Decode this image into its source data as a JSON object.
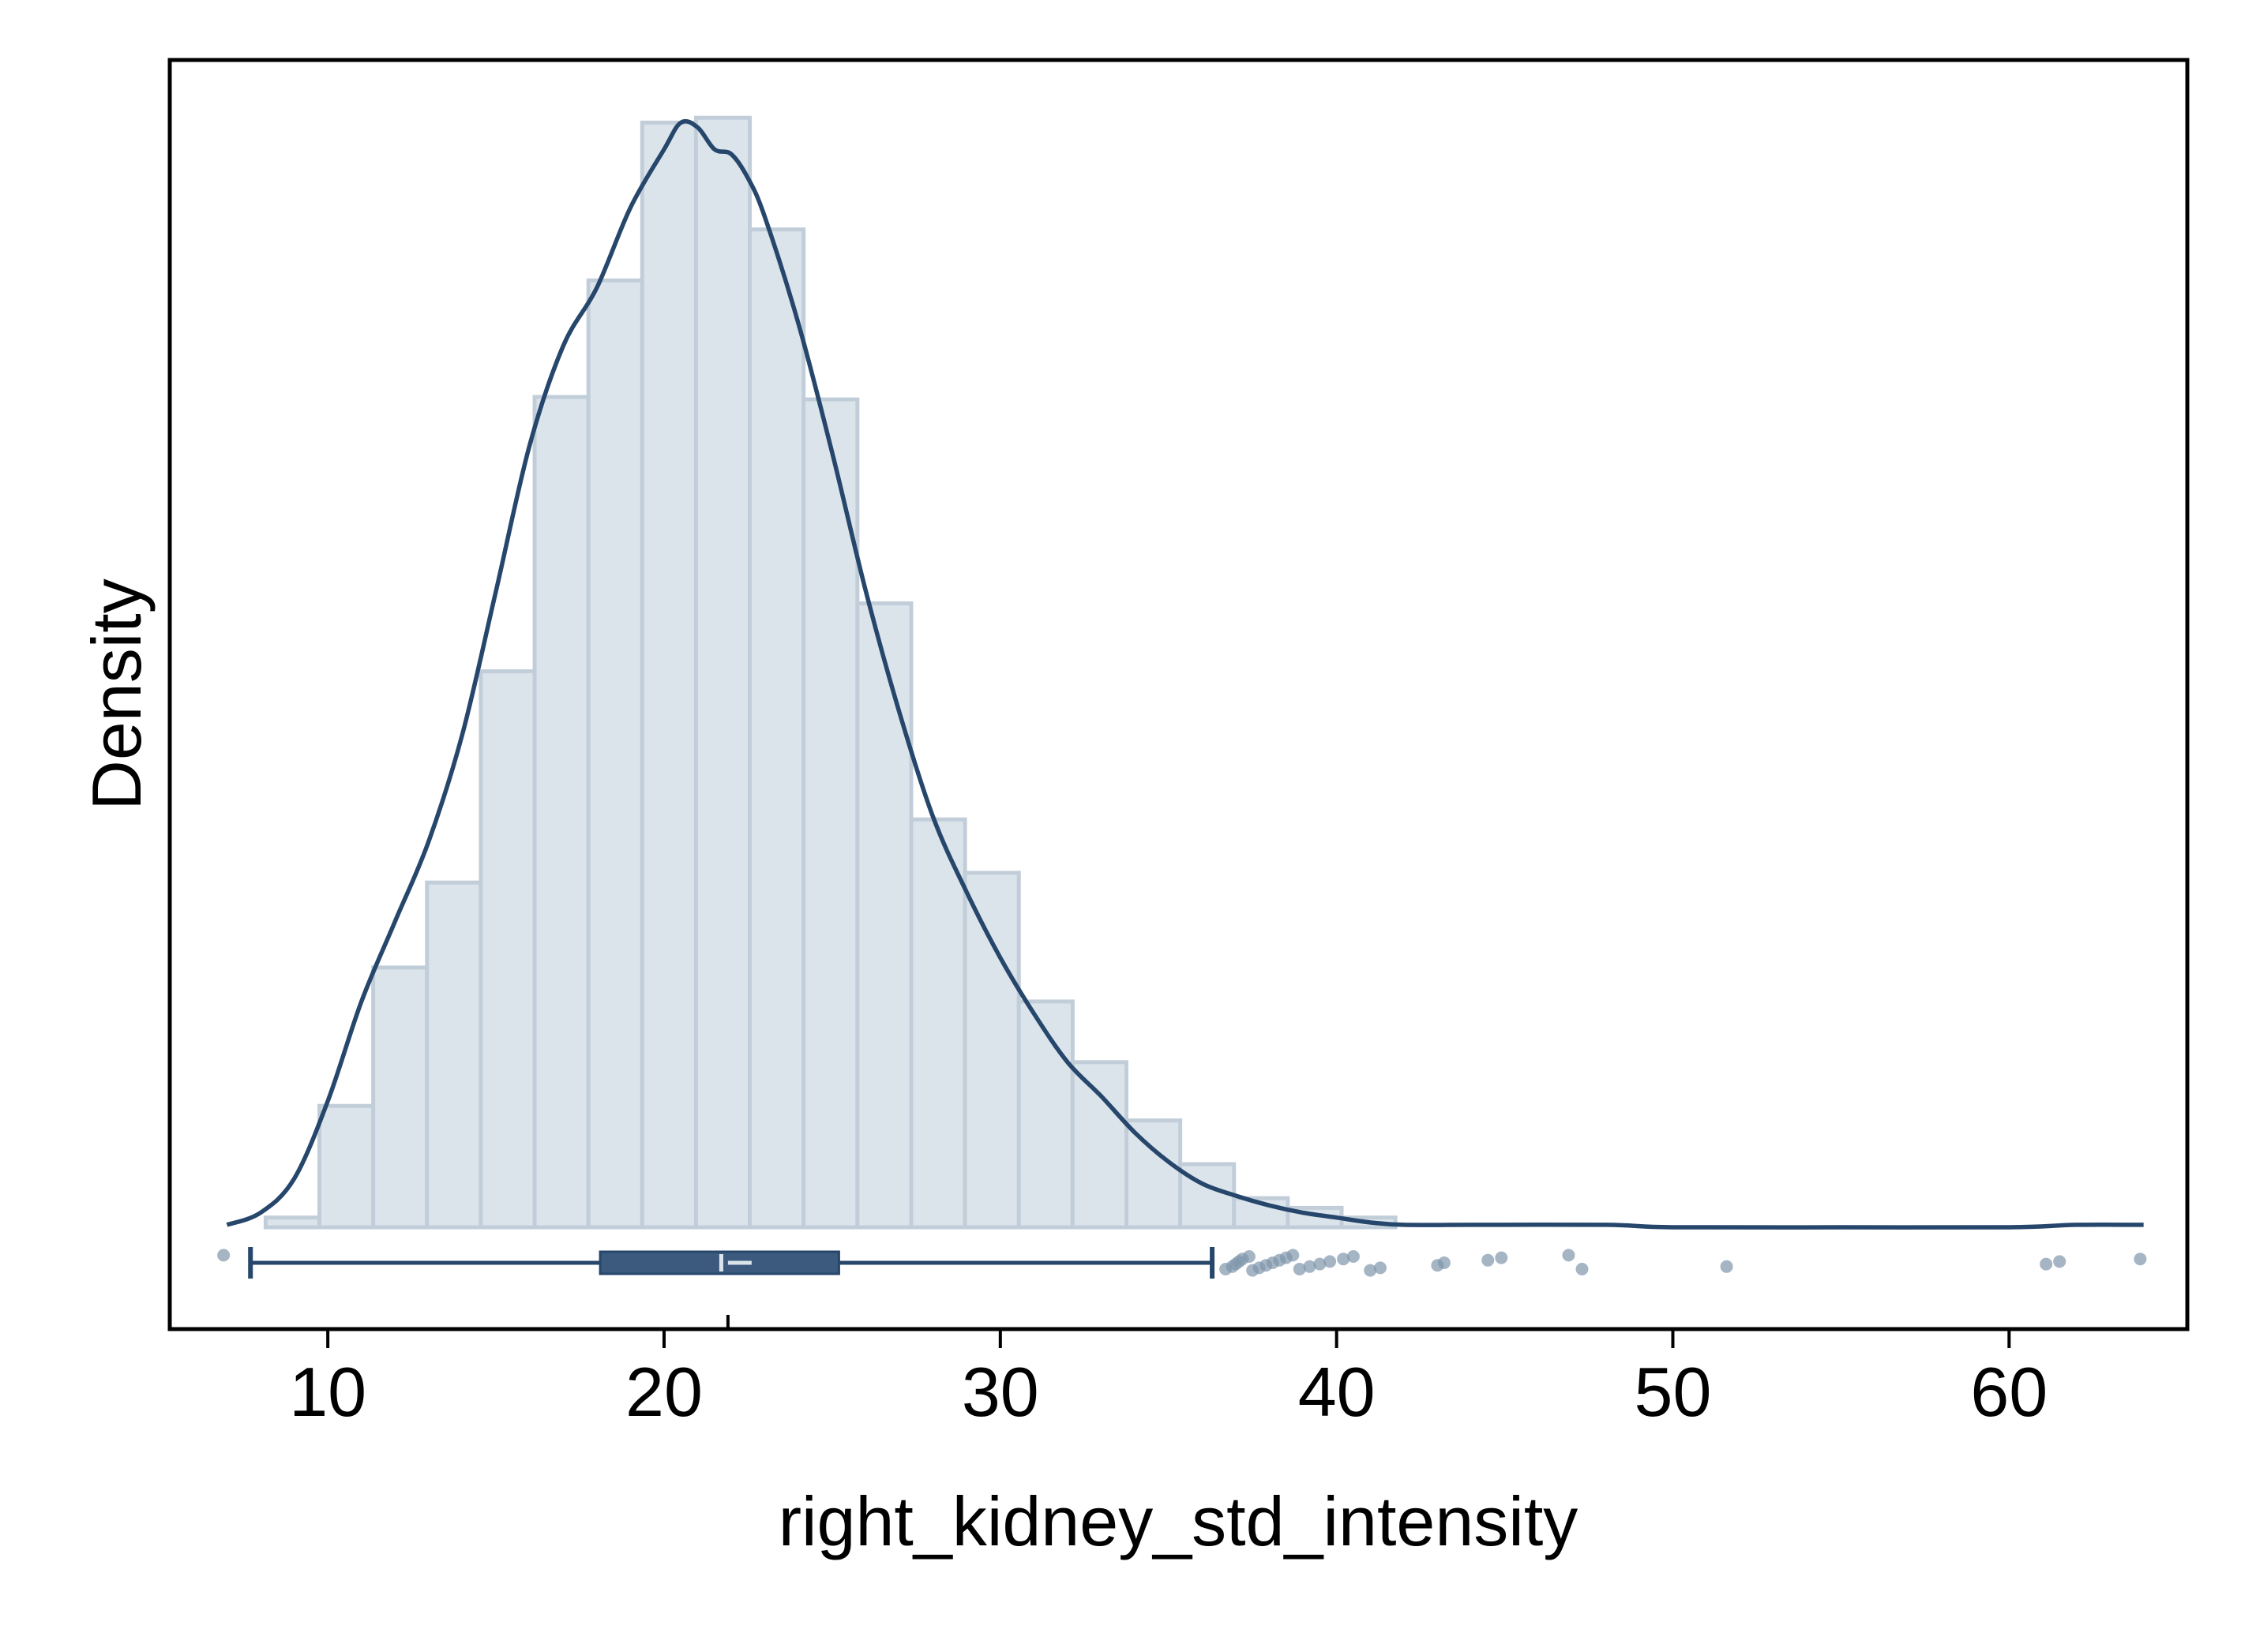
{
  "chart_data": {
    "type": "histogram",
    "title": "",
    "xlabel": "right_kidney_std_intensity",
    "ylabel": "Density",
    "xlim": [
      5.3,
      65.3
    ],
    "x_ticks": [
      10,
      20,
      30,
      40,
      50,
      60
    ],
    "y_ticks": [],
    "grid": false,
    "colors": {
      "bar_fill": "#dce4eb",
      "bar_edge": "#c1ced9",
      "kde_line": "#26476b",
      "box": "#3b5a7e",
      "outlier": "#7f95ab"
    },
    "histogram": {
      "bins": [
        {
          "start": 8.15,
          "end": 9.75,
          "density": 0.0004
        },
        {
          "start": 9.75,
          "end": 11.35,
          "density": 0.005
        },
        {
          "start": 11.35,
          "end": 12.95,
          "density": 0.0107
        },
        {
          "start": 12.95,
          "end": 14.55,
          "density": 0.0142
        },
        {
          "start": 14.55,
          "end": 16.15,
          "density": 0.0229
        },
        {
          "start": 16.15,
          "end": 17.75,
          "density": 0.0342
        },
        {
          "start": 17.75,
          "end": 19.35,
          "density": 0.039
        },
        {
          "start": 19.35,
          "end": 20.95,
          "density": 0.0455
        },
        {
          "start": 20.95,
          "end": 22.55,
          "density": 0.0457
        },
        {
          "start": 22.55,
          "end": 24.15,
          "density": 0.0411
        },
        {
          "start": 24.15,
          "end": 25.75,
          "density": 0.0341
        },
        {
          "start": 25.75,
          "end": 27.35,
          "density": 0.0257
        },
        {
          "start": 27.35,
          "end": 28.95,
          "density": 0.0168
        },
        {
          "start": 28.95,
          "end": 30.55,
          "density": 0.0146
        },
        {
          "start": 30.55,
          "end": 32.15,
          "density": 0.0093
        },
        {
          "start": 32.15,
          "end": 33.75,
          "density": 0.0068
        },
        {
          "start": 33.75,
          "end": 35.35,
          "density": 0.0044
        },
        {
          "start": 35.35,
          "end": 36.95,
          "density": 0.0026
        },
        {
          "start": 36.95,
          "end": 38.55,
          "density": 0.0012
        },
        {
          "start": 38.55,
          "end": 40.15,
          "density": 0.0008
        },
        {
          "start": 40.15,
          "end": 41.75,
          "density": 0.0004
        }
      ]
    },
    "kde": {
      "x": [
        7.0,
        8.0,
        9.0,
        10.0,
        11.0,
        12.0,
        13.0,
        14.0,
        15.0,
        16.0,
        17.0,
        18.0,
        19.0,
        20.0,
        20.5,
        21.0,
        21.5,
        22.0,
        22.5,
        23.0,
        24.0,
        25.0,
        26.0,
        27.0,
        28.0,
        29.0,
        30.0,
        31.0,
        32.0,
        33.0,
        34.0,
        35.0,
        36.0,
        37.0,
        38.0,
        39.0,
        40.0,
        41.0,
        42.0,
        44.0,
        48.0,
        50.0,
        55.0,
        60.0,
        62.0,
        64.0
      ],
      "y": [
        0.0001,
        0.0006,
        0.002,
        0.0052,
        0.0093,
        0.0126,
        0.0159,
        0.0203,
        0.0262,
        0.0322,
        0.0363,
        0.0387,
        0.042,
        0.0444,
        0.0455,
        0.0453,
        0.0444,
        0.0442,
        0.0432,
        0.0416,
        0.0372,
        0.0319,
        0.0262,
        0.0212,
        0.0169,
        0.0138,
        0.0111,
        0.0088,
        0.0068,
        0.0054,
        0.0039,
        0.0027,
        0.0018,
        0.0013,
        0.0009,
        0.0006,
        0.0004,
        0.0002,
        0.0001,
        0.0001,
        0.0001,
        0.0,
        0.0,
        0.0,
        0.0001,
        0.0001
      ]
    },
    "boxplot": {
      "whisker_low": 7.7,
      "q1": 18.1,
      "median": 21.7,
      "mean": 21.9,
      "q3": 25.2,
      "whisker_high": 36.3,
      "outliers": [
        6.9,
        36.7,
        36.9,
        37.0,
        37.1,
        37.2,
        37.4,
        37.5,
        37.7,
        37.9,
        38.1,
        38.3,
        38.5,
        38.7,
        38.9,
        39.2,
        39.5,
        39.8,
        40.2,
        40.5,
        41.0,
        41.3,
        43.0,
        43.2,
        44.5,
        44.9,
        46.9,
        47.3,
        51.6,
        61.1,
        61.5,
        63.9
      ]
    }
  }
}
